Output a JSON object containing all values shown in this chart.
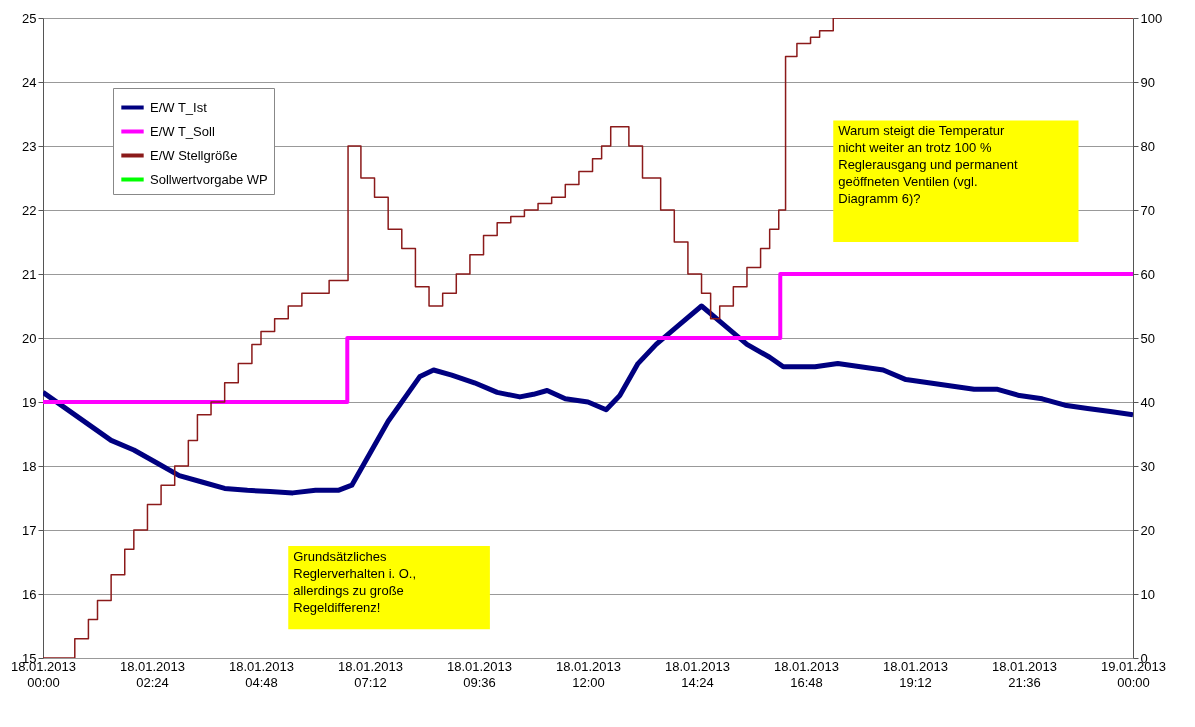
{
  "chart_data": {
    "type": "line",
    "xlim": [
      "2013-01-18T00:00",
      "2013-01-19T00:00"
    ],
    "xticks": [
      {
        "value": "2013-01-18T00:00",
        "label": "18.01.2013\n00:00"
      },
      {
        "value": "2013-01-18T02:24",
        "label": "18.01.2013\n02:24"
      },
      {
        "value": "2013-01-18T04:48",
        "label": "18.01.2013\n04:48"
      },
      {
        "value": "2013-01-18T07:12",
        "label": "18.01.2013\n07:12"
      },
      {
        "value": "2013-01-18T09:36",
        "label": "18.01.2013\n09:36"
      },
      {
        "value": "2013-01-18T12:00",
        "label": "18.01.2013\n12:00"
      },
      {
        "value": "2013-01-18T14:24",
        "label": "18.01.2013\n14:24"
      },
      {
        "value": "2013-01-18T16:48",
        "label": "18.01.2013\n16:48"
      },
      {
        "value": "2013-01-18T19:12",
        "label": "18.01.2013\n19:12"
      },
      {
        "value": "2013-01-18T21:36",
        "label": "18.01.2013\n21:36"
      },
      {
        "value": "2013-01-19T00:00",
        "label": "19.01.2013\n00:00"
      }
    ],
    "ylim": [
      15,
      25
    ],
    "yticks": [
      15,
      16,
      17,
      18,
      19,
      20,
      21,
      22,
      23,
      24,
      25
    ],
    "y2lim": [
      0,
      100
    ],
    "y2ticks": [
      0,
      10,
      20,
      30,
      40,
      50,
      60,
      70,
      80,
      90,
      100
    ],
    "grid": "y",
    "legend": "top left",
    "series": [
      {
        "name": "E/W T_Ist",
        "color": "#000080",
        "type": "line",
        "x": [
          "2013-01-18T00:00",
          "2013-01-18T00:30",
          "2013-01-18T01:00",
          "2013-01-18T01:30",
          "2013-01-18T02:00",
          "2013-01-18T02:30",
          "2013-01-18T03:00",
          "2013-01-18T03:30",
          "2013-01-18T04:00",
          "2013-01-18T04:30",
          "2013-01-18T05:00",
          "2013-01-18T05:30",
          "2013-01-18T06:00",
          "2013-01-18T06:30",
          "2013-01-18T06:48",
          "2013-01-18T07:12",
          "2013-01-18T07:36",
          "2013-01-18T08:00",
          "2013-01-18T08:18",
          "2013-01-18T08:36",
          "2013-01-18T09:00",
          "2013-01-18T09:30",
          "2013-01-18T10:00",
          "2013-01-18T10:30",
          "2013-01-18T10:48",
          "2013-01-18T11:06",
          "2013-01-18T11:30",
          "2013-01-18T12:00",
          "2013-01-18T12:24",
          "2013-01-18T12:42",
          "2013-01-18T13:06",
          "2013-01-18T13:30",
          "2013-01-18T14:00",
          "2013-01-18T14:30",
          "2013-01-18T15:00",
          "2013-01-18T15:30",
          "2013-01-18T16:00",
          "2013-01-18T16:18",
          "2013-01-18T17:00",
          "2013-01-18T17:30",
          "2013-01-18T18:00",
          "2013-01-18T18:30",
          "2013-01-18T19:00",
          "2013-01-18T19:30",
          "2013-01-18T20:00",
          "2013-01-18T20:30",
          "2013-01-18T21:00",
          "2013-01-18T21:30",
          "2013-01-18T22:00",
          "2013-01-18T22:30",
          "2013-01-18T23:00",
          "2013-01-18T23:30",
          "2013-01-19T00:00"
        ],
        "values": [
          19.15,
          18.9,
          18.65,
          18.4,
          18.25,
          18.05,
          17.85,
          17.75,
          17.65,
          17.62,
          17.6,
          17.58,
          17.62,
          17.62,
          17.7,
          18.2,
          18.7,
          19.1,
          19.4,
          19.5,
          19.42,
          19.3,
          19.15,
          19.08,
          19.12,
          19.18,
          19.05,
          19.0,
          18.88,
          19.1,
          19.6,
          19.9,
          20.2,
          20.5,
          20.2,
          19.9,
          19.7,
          19.55,
          19.55,
          19.6,
          19.55,
          19.5,
          19.35,
          19.3,
          19.25,
          19.2,
          19.2,
          19.1,
          19.05,
          18.95,
          18.9,
          18.85,
          18.8
        ]
      },
      {
        "name": "E/W T_Soll",
        "color": "#ff00ff",
        "type": "step",
        "x": [
          "2013-01-18T00:00",
          "2013-01-18T06:42",
          "2013-01-18T16:14",
          "2013-01-19T00:00"
        ],
        "values": [
          19,
          20,
          21,
          21
        ]
      },
      {
        "name": "E/W Stellgröße",
        "color": "#8b1a1a",
        "type": "step",
        "axis": "y2",
        "x": [
          "2013-01-18T00:00",
          "2013-01-18T00:30",
          "2013-01-18T00:42",
          "2013-01-18T01:00",
          "2013-01-18T01:12",
          "2013-01-18T01:30",
          "2013-01-18T01:48",
          "2013-01-18T02:00",
          "2013-01-18T02:18",
          "2013-01-18T02:36",
          "2013-01-18T02:54",
          "2013-01-18T03:12",
          "2013-01-18T03:24",
          "2013-01-18T03:42",
          "2013-01-18T04:00",
          "2013-01-18T04:18",
          "2013-01-18T04:36",
          "2013-01-18T04:48",
          "2013-01-18T05:06",
          "2013-01-18T05:24",
          "2013-01-18T05:42",
          "2013-01-18T06:18",
          "2013-01-18T06:43",
          "2013-01-18T07:00",
          "2013-01-18T07:18",
          "2013-01-18T07:36",
          "2013-01-18T07:54",
          "2013-01-18T08:12",
          "2013-01-18T08:30",
          "2013-01-18T08:48",
          "2013-01-18T09:06",
          "2013-01-18T09:24",
          "2013-01-18T09:42",
          "2013-01-18T10:00",
          "2013-01-18T10:18",
          "2013-01-18T10:36",
          "2013-01-18T10:54",
          "2013-01-18T11:12",
          "2013-01-18T11:30",
          "2013-01-18T11:48",
          "2013-01-18T12:06",
          "2013-01-18T12:18",
          "2013-01-18T12:30",
          "2013-01-18T12:54",
          "2013-01-18T13:12",
          "2013-01-18T13:36",
          "2013-01-18T13:54",
          "2013-01-18T14:12",
          "2013-01-18T14:30",
          "2013-01-18T14:42",
          "2013-01-18T14:54",
          "2013-01-18T15:12",
          "2013-01-18T15:30",
          "2013-01-18T15:48",
          "2013-01-18T16:00",
          "2013-01-18T16:12",
          "2013-01-18T16:21",
          "2013-01-18T16:36",
          "2013-01-18T16:54",
          "2013-01-18T17:06",
          "2013-01-18T17:24",
          "2013-01-19T00:00"
        ],
        "values": [
          0,
          0,
          3,
          6,
          9,
          13,
          17,
          20,
          24,
          27,
          30,
          34,
          38,
          40,
          43,
          46,
          49,
          51,
          53,
          55,
          57,
          59,
          80,
          75,
          72,
          67,
          64,
          58,
          55,
          57,
          60,
          63,
          66,
          68,
          69,
          70,
          71,
          72,
          74,
          76,
          78,
          80,
          83,
          80,
          75,
          70,
          65,
          60,
          57,
          53,
          55,
          58,
          61,
          64,
          67,
          70,
          94,
          96,
          97,
          98,
          100,
          100
        ]
      },
      {
        "name": "Sollwertvorgabe WP",
        "color": "#00ff00",
        "type": "line"
      }
    ],
    "annotations": [
      "Grundsätzliches\nReglerverhalten i. O.,\nallerdings zu große\nRegeldifferenz!",
      "Warum steigt die Temperatur\nnicht weiter an trotz 100 %\nReglerausgang und permanent\ngeöffneten Ventilen (vgl.\nDiagramm 6)?"
    ]
  }
}
